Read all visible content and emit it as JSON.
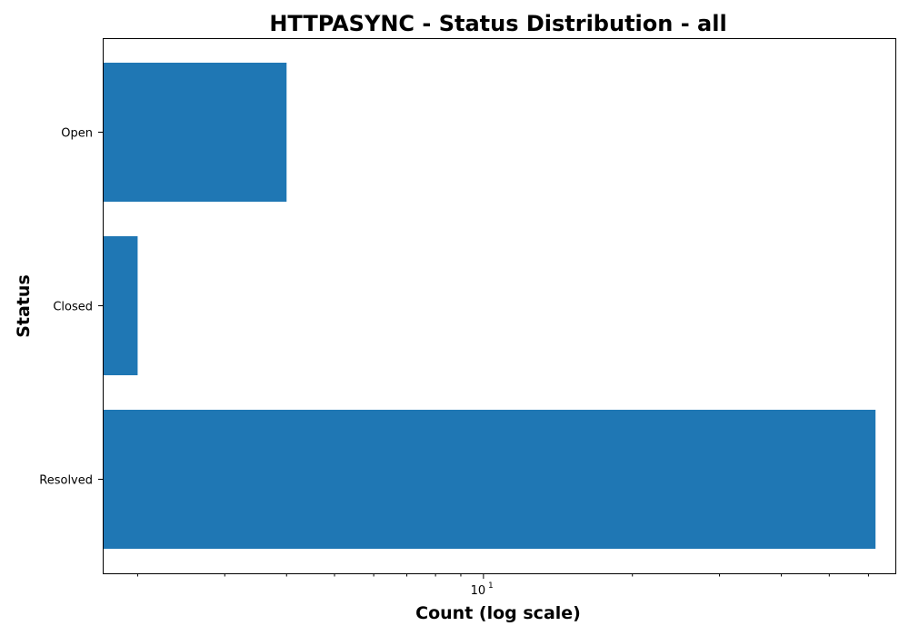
{
  "chart_data": {
    "type": "bar",
    "orientation": "horizontal",
    "title": "HTTPASYNC - Status Distribution - all",
    "xlabel": "Count (log scale)",
    "ylabel": "Status",
    "x_scale": "log",
    "xlim": [
      1.7,
      68
    ],
    "categories": [
      "Open",
      "Closed",
      "Resolved"
    ],
    "values": [
      4,
      2,
      62
    ],
    "x_tick_labels": [
      {
        "value": 10,
        "base": "10",
        "exponent": "1"
      }
    ],
    "grid": false,
    "legend": "none",
    "colors": {
      "bar": "#1f77b4"
    }
  }
}
